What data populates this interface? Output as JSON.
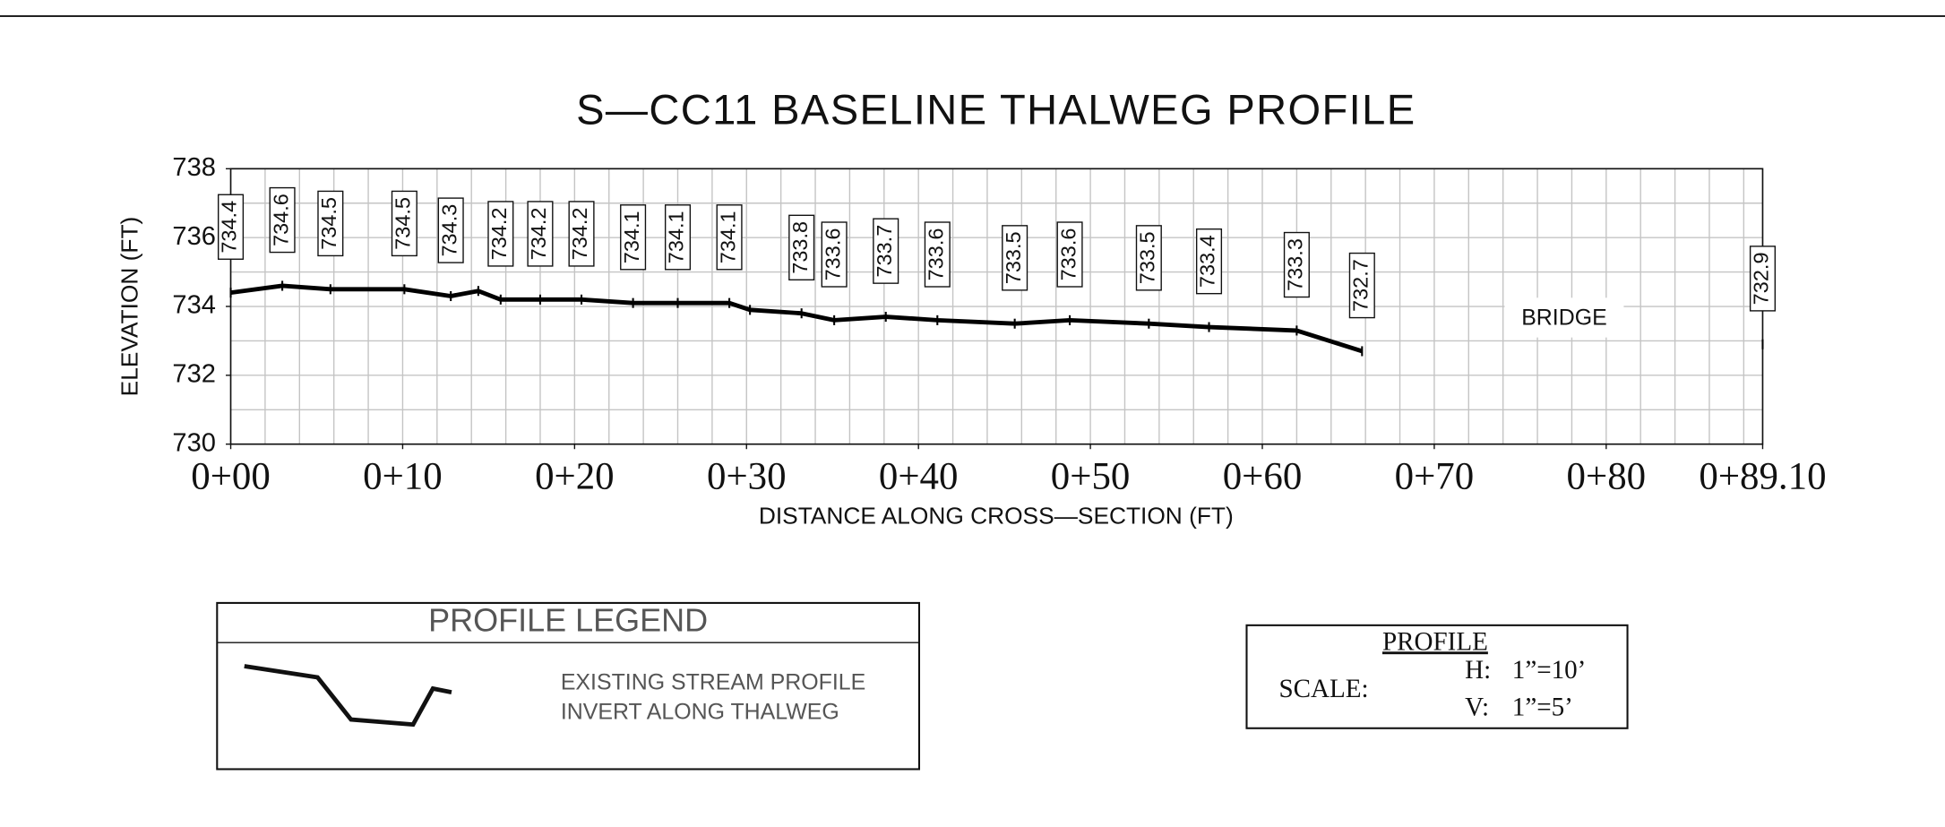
{
  "chart_data": {
    "type": "line",
    "title": "S—CC11  BASELINE  THALWEG  PROFILE",
    "x_label": "DISTANCE  ALONG  CROSS—SECTION  (FT)",
    "y_label": "ELEVATION  (FT)",
    "x": [
      0,
      3,
      5.8,
      10.1,
      12.8,
      14.4,
      15.7,
      18.0,
      20.4,
      23.4,
      26.0,
      29.0,
      30.2,
      33.2,
      35.1,
      38.1,
      41.1,
      45.6,
      48.8,
      53.4,
      56.9,
      62.0,
      65.8,
      null,
      89.1
    ],
    "values": [
      734.4,
      734.6,
      734.5,
      734.5,
      734.3,
      734.45,
      734.2,
      734.2,
      734.2,
      734.1,
      734.1,
      734.1,
      733.9,
      733.8,
      733.6,
      733.7,
      733.6,
      733.5,
      733.6,
      733.5,
      733.4,
      733.3,
      732.7,
      null,
      732.9
    ],
    "value_labels": [
      "734.4",
      "734.6",
      "734.5",
      "734.5",
      "734.3",
      null,
      "734.2",
      "734.2",
      "734.2",
      "734.1",
      "734.1",
      "734.1",
      null,
      "733.8",
      "733.6",
      "733.7",
      "733.6",
      "733.5",
      "733.6",
      "733.5",
      "733.4",
      "733.3",
      "732.7",
      null,
      "732.9"
    ],
    "color": "#000000",
    "xlim": [
      0,
      89.1
    ],
    "ylim": [
      730,
      738
    ],
    "xticks": [
      {
        "value": 0,
        "label": "0+00"
      },
      {
        "value": 10,
        "label": "0+10"
      },
      {
        "value": 20,
        "label": "0+20"
      },
      {
        "value": 30,
        "label": "0+30"
      },
      {
        "value": 40,
        "label": "0+40"
      },
      {
        "value": 50,
        "label": "0+50"
      },
      {
        "value": 60,
        "label": "0+60"
      },
      {
        "value": 70,
        "label": "0+70"
      },
      {
        "value": 80,
        "label": "0+80"
      },
      {
        "value": 89.1,
        "label": "0+89.10"
      }
    ],
    "yticks": [
      730,
      732,
      734,
      736,
      738
    ],
    "grid": {
      "x_step": 2,
      "y_step": 1
    },
    "annotation": "BRIDGE",
    "legend": {
      "title": "PROFILE LEGEND",
      "lines": [
        "EXISTING  STREAM PROFILE",
        "INVERT ALONG THALWEG"
      ]
    },
    "scale": {
      "heading": "PROFILE",
      "label": "SCALE:",
      "h": "H:",
      "h_value": "1”=10’",
      "v": "V:",
      "v_value": "1”=5’"
    }
  }
}
